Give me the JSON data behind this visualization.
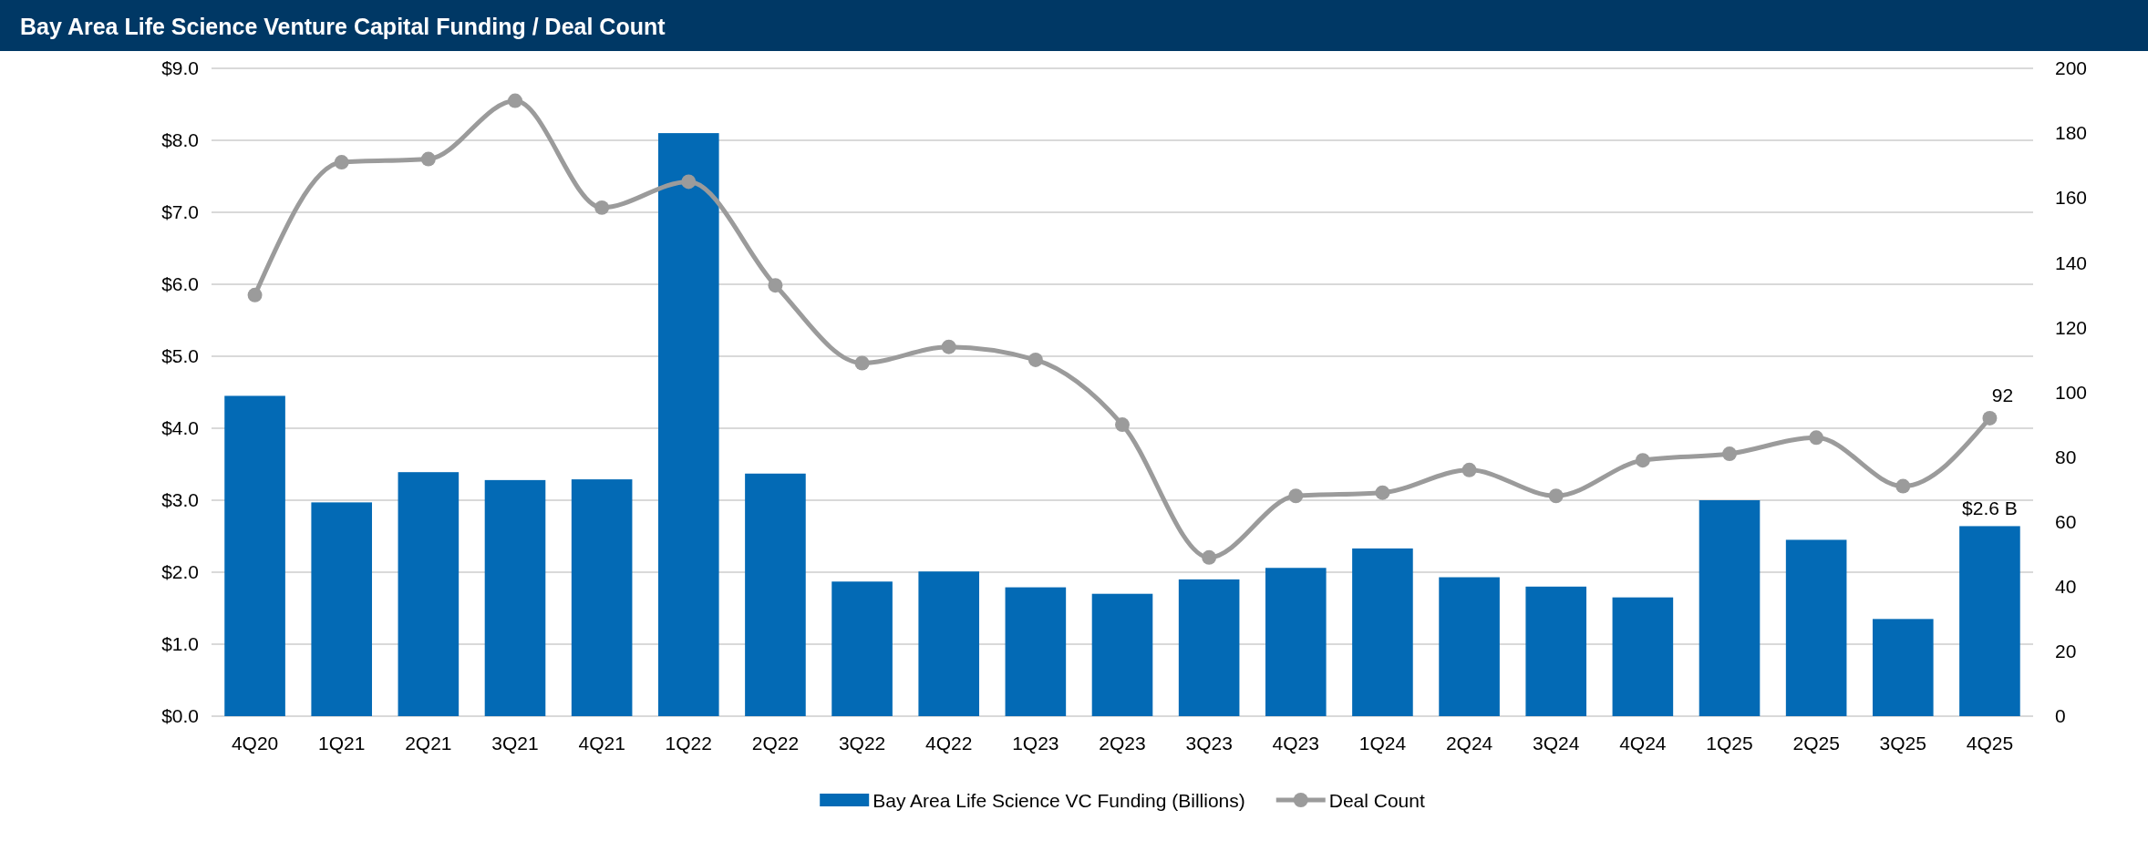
{
  "chart_data": {
    "type": "bar",
    "title": "Bay Area Life Science Venture Capital Funding / Deal Count",
    "categories": [
      "4Q20",
      "1Q21",
      "2Q21",
      "3Q21",
      "4Q21",
      "1Q22",
      "2Q22",
      "3Q22",
      "4Q22",
      "1Q23",
      "2Q23",
      "3Q23",
      "4Q23",
      "1Q24",
      "2Q24",
      "3Q24",
      "4Q24",
      "1Q25",
      "2Q25",
      "3Q25",
      "4Q25"
    ],
    "series": [
      {
        "name": "Bay Area Life Science VC Funding (Billions)",
        "color": "#036ab5",
        "values": [
          4.45,
          2.97,
          3.39,
          3.28,
          3.29,
          8.1,
          3.37,
          1.87,
          2.01,
          1.79,
          1.7,
          1.9,
          2.06,
          2.33,
          1.93,
          1.8,
          1.65,
          3.0,
          2.45,
          1.35,
          2.64
        ],
        "value_labels": [
          null,
          null,
          null,
          null,
          null,
          null,
          null,
          null,
          null,
          null,
          null,
          null,
          null,
          null,
          null,
          null,
          null,
          null,
          null,
          null,
          "$2.6 B"
        ]
      },
      {
        "name": "Deal Count",
        "type": "line",
        "axis": "y2",
        "color": "#9b9b9b",
        "marker": "circle",
        "values": [
          130,
          171,
          172,
          190,
          157,
          165,
          133,
          109,
          114,
          110,
          90,
          49,
          68,
          69,
          76,
          68,
          79,
          81,
          86,
          71,
          92
        ],
        "value_labels": [
          null,
          null,
          null,
          null,
          null,
          null,
          null,
          null,
          null,
          null,
          null,
          null,
          null,
          null,
          null,
          null,
          null,
          null,
          null,
          null,
          "92"
        ]
      }
    ],
    "ylim": [
      0,
      9
    ],
    "yticks": [
      {
        "value": 0,
        "label": "$0.0"
      },
      {
        "value": 1,
        "label": "$1.0"
      },
      {
        "value": 2,
        "label": "$2.0"
      },
      {
        "value": 3,
        "label": "$3.0"
      },
      {
        "value": 4,
        "label": "$4.0"
      },
      {
        "value": 5,
        "label": "$5.0"
      },
      {
        "value": 6,
        "label": "$6.0"
      },
      {
        "value": 7,
        "label": "$7.0"
      },
      {
        "value": 8,
        "label": "$8.0"
      },
      {
        "value": 9,
        "label": "$9.0"
      }
    ],
    "y2lim": [
      0,
      200
    ],
    "y2ticks": [
      0,
      20,
      40,
      60,
      80,
      100,
      120,
      140,
      160,
      180,
      200
    ],
    "grid": "y",
    "legend": "bottom"
  }
}
